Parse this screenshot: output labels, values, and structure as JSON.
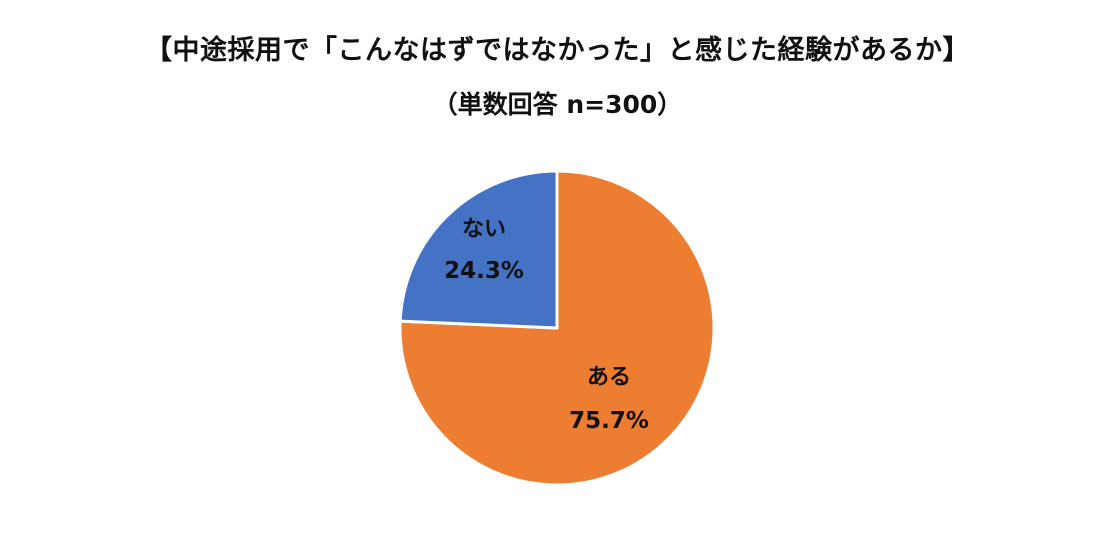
{
  "title": "【中途採用で「こんなはずではなかった」と感じた経験があるか】",
  "subtitle": "（単数回答 n=300）",
  "chart_data": {
    "type": "pie",
    "title": "【中途採用で「こんなはずではなかった」と感じた経験があるか】",
    "subtitle": "（単数回答 n=300）",
    "slices": [
      {
        "label": "ある",
        "value": 75.7,
        "value_label": "75.7%",
        "color": "#ED7D31"
      },
      {
        "label": "ない",
        "value": 24.3,
        "value_label": "24.3%",
        "color": "#4472C4"
      }
    ],
    "start": "12 o'clock, clockwise",
    "legend": "none"
  }
}
